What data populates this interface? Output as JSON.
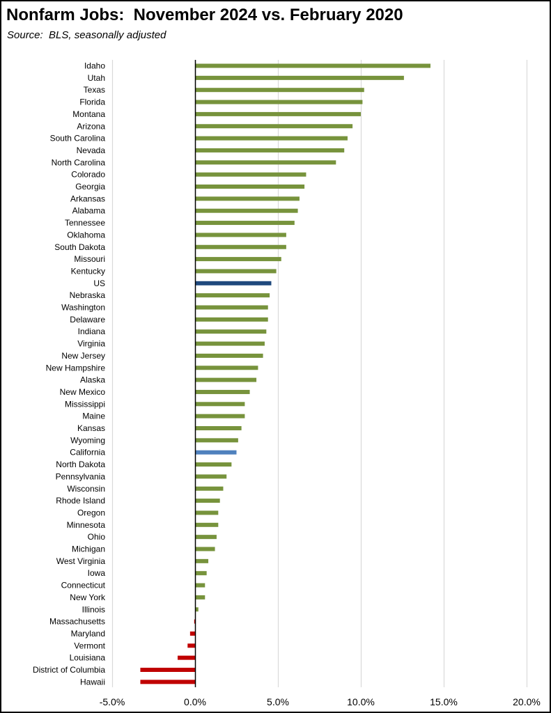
{
  "chart_data": {
    "type": "bar",
    "orientation": "horizontal",
    "title": "Nonfarm Jobs:  November 2024 vs. February 2020",
    "subtitle": "Source:  BLS, seasonally adjusted",
    "xlabel": "",
    "ylabel": "",
    "xlim": [
      -5.0,
      20.0
    ],
    "x_ticks": [
      -5.0,
      0.0,
      5.0,
      10.0,
      15.0,
      20.0
    ],
    "x_tick_labels": [
      "-5.0%",
      "0.0%",
      "5.0%",
      "10.0%",
      "15.0%",
      "20.0%"
    ],
    "grid": "vertical",
    "categories": [
      "Idaho",
      "Utah",
      "Texas",
      "Florida",
      "Montana",
      "Arizona",
      "South Carolina",
      "Nevada",
      "North Carolina",
      "Colorado",
      "Georgia",
      "Arkansas",
      "Alabama",
      "Tennessee",
      "Oklahoma",
      "South Dakota",
      "Missouri",
      "Kentucky",
      "US",
      "Nebraska",
      "Washington",
      "Delaware",
      "Indiana",
      "Virginia",
      "New Jersey",
      "New Hampshire",
      "Alaska",
      "New Mexico",
      "Mississippi",
      "Maine",
      "Kansas",
      "Wyoming",
      "California",
      "North Dakota",
      "Pennsylvania",
      "Wisconsin",
      "Rhode Island",
      "Oregon",
      "Minnesota",
      "Ohio",
      "Michigan",
      "West Virginia",
      "Iowa",
      "Connecticut",
      "New York",
      "Illinois",
      "Massachusetts",
      "Maryland",
      "Vermont",
      "Louisiana",
      "District of Columbia",
      "Hawaii"
    ],
    "values": [
      14.2,
      12.6,
      10.2,
      10.1,
      10.0,
      9.5,
      9.2,
      9.0,
      8.5,
      6.7,
      6.6,
      6.3,
      6.2,
      6.0,
      5.5,
      5.5,
      5.2,
      4.9,
      4.6,
      4.5,
      4.4,
      4.4,
      4.3,
      4.2,
      4.1,
      3.8,
      3.7,
      3.3,
      3.0,
      3.0,
      2.8,
      2.6,
      2.5,
      2.2,
      1.9,
      1.7,
      1.5,
      1.4,
      1.4,
      1.3,
      1.2,
      0.8,
      0.7,
      0.6,
      0.6,
      0.2,
      -0.05,
      -0.3,
      -0.45,
      -1.05,
      -3.3,
      -3.3
    ],
    "colors": {
      "default": "#77933C",
      "US": "#1F497D",
      "California": "#4F81BD",
      "negative": "#C00000",
      "gridline": "#D9D9D9",
      "axis": "#000000"
    }
  }
}
